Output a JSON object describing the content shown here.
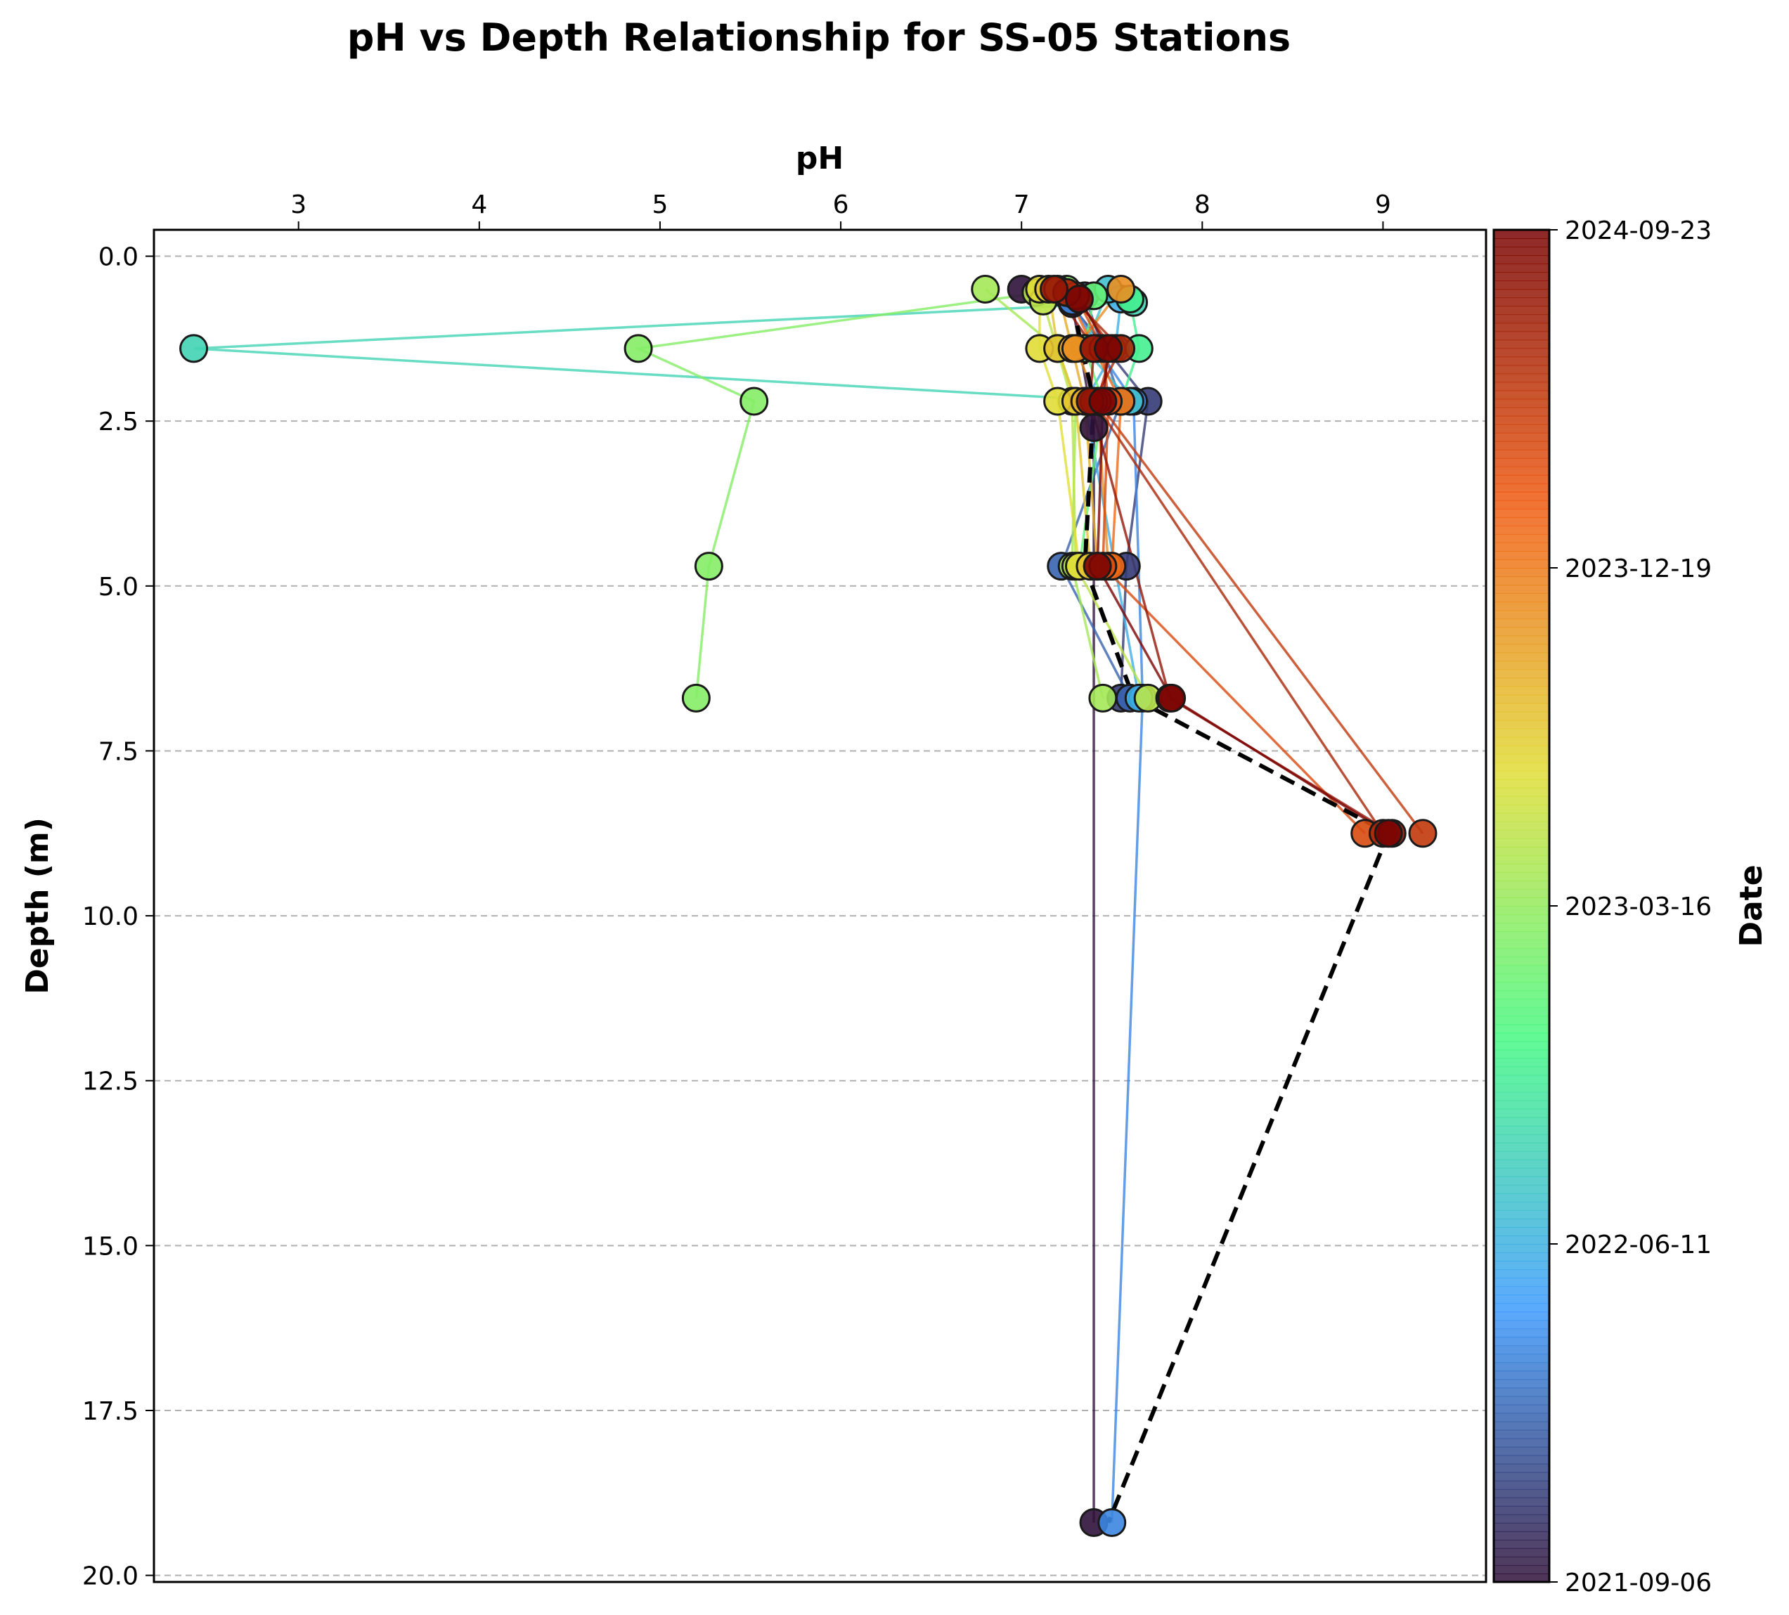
{
  "chart_data": {
    "type": "scatter",
    "title": "pH vs Depth Relationship for SS-05 Stations",
    "xlabel": "pH",
    "ylabel": "Depth (m)",
    "colorbar_label": "Date",
    "x_axis_position": "top",
    "y_axis_inverted": true,
    "xlim": [
      2.2,
      9.57
    ],
    "ylim": [
      20.1,
      -0.4
    ],
    "x_ticks": [
      "3",
      "4",
      "5",
      "6",
      "7",
      "8",
      "9"
    ],
    "y_ticks": [
      "0.0",
      "2.5",
      "5.0",
      "7.5",
      "10.0",
      "12.5",
      "15.0",
      "17.5",
      "20.0"
    ],
    "y_grid": true,
    "colorbar_ticks": [
      "2021-09-06",
      "2022-06-11",
      "2023-03-16",
      "2023-12-19",
      "2024-09-23"
    ],
    "colormap": [
      "#30123b",
      "#3e9bfe",
      "#46f884",
      "#e1dd37",
      "#f05b12",
      "#7a0403"
    ],
    "series": [
      {
        "color_t": 0.0,
        "points": [
          [
            7.0,
            0.5
          ],
          [
            7.28,
            0.72
          ],
          [
            7.4,
            2.6
          ],
          [
            7.4,
            19.2
          ]
        ]
      },
      {
        "color_t": 0.06,
        "points": [
          [
            7.22,
            0.55
          ],
          [
            7.7,
            2.2
          ],
          [
            7.58,
            4.7
          ],
          [
            7.55,
            6.7
          ]
        ]
      },
      {
        "color_t": 0.12,
        "points": [
          [
            7.35,
            0.6
          ],
          [
            7.55,
            2.2
          ],
          [
            7.22,
            4.7
          ],
          [
            7.6,
            6.7
          ]
        ]
      },
      {
        "color_t": 0.17,
        "points": [
          [
            7.28,
            0.68
          ],
          [
            7.42,
            1.4
          ],
          [
            7.62,
            2.2
          ],
          [
            7.67,
            6.7
          ],
          [
            7.5,
            19.2
          ]
        ]
      },
      {
        "color_t": 0.24,
        "points": [
          [
            7.55,
            0.65
          ],
          [
            7.52,
            1.4
          ],
          [
            7.35,
            2.2
          ],
          [
            7.65,
            6.7
          ]
        ]
      },
      {
        "color_t": 0.28,
        "points": [
          [
            7.48,
            0.5
          ],
          [
            7.35,
            1.4
          ],
          [
            7.6,
            2.2
          ]
        ]
      },
      {
        "color_t": 0.32,
        "points": [
          [
            7.62,
            0.7
          ],
          [
            2.42,
            1.4
          ],
          [
            7.55,
            2.2
          ]
        ]
      },
      {
        "color_t": 0.38,
        "points": [
          [
            7.6,
            0.65
          ],
          [
            7.65,
            1.4
          ],
          [
            7.55,
            2.2
          ]
        ]
      },
      {
        "color_t": 0.44,
        "points": [
          [
            7.4,
            0.6
          ],
          [
            7.35,
            1.4
          ],
          [
            7.45,
            2.2
          ],
          [
            7.32,
            4.7
          ]
        ]
      },
      {
        "color_t": 0.48,
        "points": [
          [
            7.25,
            0.5
          ],
          [
            4.88,
            1.4
          ],
          [
            5.52,
            2.2
          ],
          [
            5.27,
            4.7
          ],
          [
            5.2,
            6.7
          ]
        ]
      },
      {
        "color_t": 0.52,
        "points": [
          [
            6.8,
            0.5
          ],
          [
            7.2,
            1.4
          ],
          [
            7.3,
            2.2
          ],
          [
            7.28,
            4.7
          ],
          [
            7.45,
            6.7
          ]
        ]
      },
      {
        "color_t": 0.55,
        "points": [
          [
            7.08,
            0.55
          ],
          [
            7.12,
            0.68
          ],
          [
            7.28,
            2.2
          ],
          [
            7.3,
            4.7
          ],
          [
            7.7,
            6.7
          ]
        ]
      },
      {
        "color_t": 0.6,
        "points": [
          [
            7.1,
            0.5
          ],
          [
            7.1,
            1.4
          ],
          [
            7.2,
            2.2
          ],
          [
            7.32,
            4.7
          ]
        ]
      },
      {
        "color_t": 0.64,
        "points": [
          [
            7.15,
            0.5
          ],
          [
            7.2,
            1.4
          ],
          [
            7.3,
            2.2
          ],
          [
            7.38,
            4.7
          ]
        ]
      },
      {
        "color_t": 0.68,
        "points": [
          [
            7.2,
            0.5
          ],
          [
            7.28,
            1.4
          ],
          [
            7.35,
            2.2
          ],
          [
            7.42,
            4.7
          ]
        ]
      },
      {
        "color_t": 0.72,
        "points": [
          [
            7.55,
            0.5
          ],
          [
            7.3,
            1.4
          ],
          [
            7.42,
            2.2
          ],
          [
            7.48,
            4.7
          ]
        ]
      },
      {
        "color_t": 0.78,
        "points": [
          [
            7.25,
            0.55
          ],
          [
            7.4,
            1.4
          ],
          [
            7.55,
            2.2
          ],
          [
            7.5,
            4.7
          ]
        ]
      },
      {
        "color_t": 0.84,
        "points": [
          [
            7.3,
            0.6
          ],
          [
            7.45,
            1.4
          ],
          [
            7.48,
            2.2
          ],
          [
            7.45,
            4.7
          ],
          [
            8.9,
            8.75
          ]
        ]
      },
      {
        "color_t": 0.88,
        "points": [
          [
            7.3,
            0.6
          ],
          [
            7.5,
            1.4
          ],
          [
            7.42,
            2.2
          ],
          [
            9.22,
            8.75
          ]
        ]
      },
      {
        "color_t": 0.92,
        "points": [
          [
            7.25,
            0.55
          ],
          [
            7.55,
            1.4
          ],
          [
            7.4,
            2.2
          ],
          [
            9.0,
            8.75
          ]
        ]
      },
      {
        "color_t": 0.96,
        "points": [
          [
            7.18,
            0.5
          ],
          [
            7.4,
            1.4
          ],
          [
            7.38,
            2.2
          ],
          [
            7.82,
            6.7
          ],
          [
            9.05,
            8.75
          ]
        ]
      },
      {
        "color_t": 1.0,
        "points": [
          [
            7.32,
            0.65
          ],
          [
            7.48,
            1.4
          ],
          [
            7.45,
            2.2
          ],
          [
            7.42,
            4.7
          ],
          [
            7.83,
            6.7
          ],
          [
            9.03,
            8.75
          ]
        ]
      }
    ],
    "mean_profile": {
      "style": "black dashed",
      "points": [
        [
          7.28,
          0.7
        ],
        [
          7.4,
          2.2
        ],
        [
          7.35,
          4.7
        ],
        [
          7.62,
          6.7
        ],
        [
          9.03,
          8.75
        ],
        [
          7.48,
          19.2
        ]
      ]
    }
  }
}
